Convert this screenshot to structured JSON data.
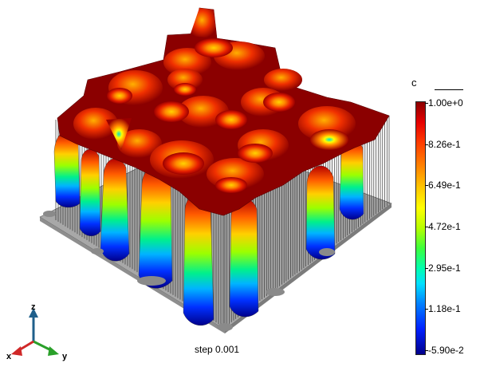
{
  "colorbar": {
    "title": "c",
    "labels": [
      "1.00e+0",
      "8.26e-1",
      "6.49e-1",
      "4.72e-1",
      "2.95e-1",
      "1.18e-1",
      "-5.90e-2"
    ]
  },
  "caption": {
    "text": "step 0.001"
  },
  "axes_triad": {
    "x_label": "x",
    "y_label": "y",
    "z_label": "z"
  },
  "colors": {
    "high": "#8b0000",
    "mid": "#ffff00",
    "low": "#00008b",
    "base": "#a0a0a0"
  }
}
